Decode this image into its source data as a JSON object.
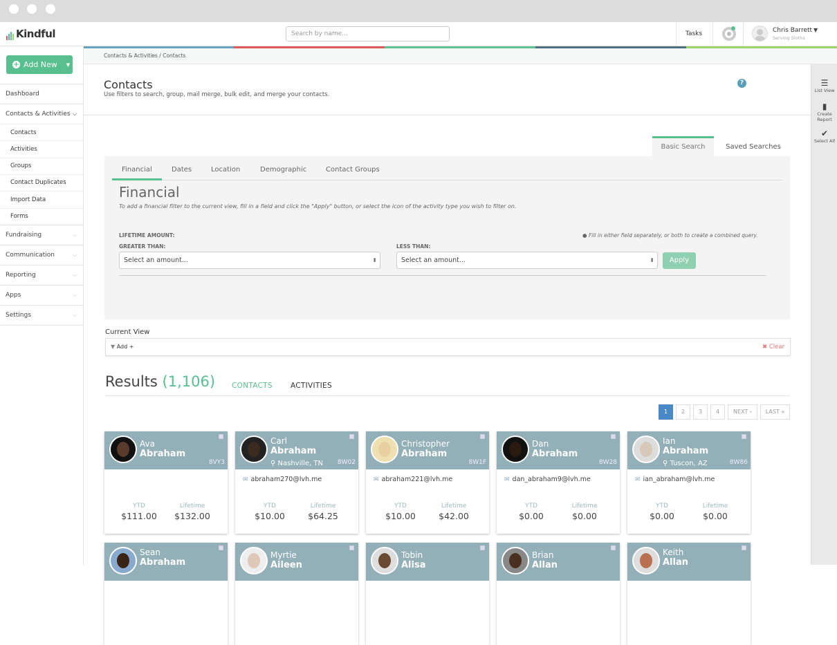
{
  "app": {
    "name": "Kindful",
    "search_placeholder": "Search by name...",
    "tasks": "Tasks",
    "user_name": "Chris Barrett",
    "user_org": "Serving Sloths"
  },
  "stripe_colors": [
    "#6aa5c0",
    "#e0595a",
    "#5ec38f",
    "#4b6f80",
    "#9cd36a"
  ],
  "accent": "#58bf8f",
  "sidebar": {
    "add_new": "Add New",
    "items": [
      {
        "label": "Dashboard"
      },
      {
        "label": "Contacts & Activities",
        "expanded": true,
        "children": [
          "Contacts",
          "Activities",
          "Groups",
          "Contact Duplicates",
          "Import Data",
          "Forms"
        ]
      },
      {
        "label": "Fundraising"
      },
      {
        "label": "Communication"
      },
      {
        "label": "Reporting"
      },
      {
        "label": "Apps"
      },
      {
        "label": "Settings"
      }
    ]
  },
  "breadcrumb": "Contacts & Activities  /  Contacts",
  "page": {
    "title": "Contacts",
    "subtitle": "Use filters to search, group, mail merge, bulk edit, and merge your contacts."
  },
  "right_toolbar": [
    "List View",
    "Create Report",
    "Select All"
  ],
  "search_tabs": {
    "basic": "Basic Search",
    "saved": "Saved Searches"
  },
  "filter": {
    "tabs": [
      "Financial",
      "Dates",
      "Location",
      "Demographic",
      "Contact Groups"
    ],
    "active_tab": "Financial",
    "title": "Financial",
    "description": "To add a financial filter to the current view, fill in a field and click the \"Apply\" button, or select the icon of the activity type you wish to filter on.",
    "lifetime_label": "LIFETIME AMOUNT:",
    "greater_label": "GREATER THAN:",
    "less_label": "LESS THAN:",
    "note": "Fill in either field separately, or both to create a combined query.",
    "greater_value": "Select an amount...",
    "less_value": "Select an amount...",
    "apply": "Apply"
  },
  "current_view": {
    "label": "Current View",
    "add": "Add +",
    "clear": "Clear"
  },
  "results": {
    "label": "Results",
    "count": "(1,106)",
    "tabs": [
      "CONTACTS",
      "ACTIVITIES"
    ]
  },
  "pagination": [
    "1",
    "2",
    "3",
    "4",
    "NEXT ›",
    "LAST »"
  ],
  "contacts": [
    {
      "first": "Ava",
      "last": "Abraham",
      "id": "8VY3",
      "location": "",
      "email": "",
      "ytd": "$111.00",
      "lifetime": "$132.00"
    },
    {
      "first": "Carl",
      "last": "Abraham",
      "id": "8W02",
      "location": "Nashville, TN",
      "email": "abraham270@lvh.me",
      "ytd": "$10.00",
      "lifetime": "$64.25"
    },
    {
      "first": "Christopher",
      "last": "Abraham",
      "id": "8W1F",
      "location": "",
      "email": "abraham221@lvh.me",
      "ytd": "$10.00",
      "lifetime": "$42.00"
    },
    {
      "first": "Dan",
      "last": "Abraham",
      "id": "8W28",
      "location": "",
      "email": "dan_abraham9@lvh.me",
      "ytd": "$0.00",
      "lifetime": "$0.00"
    },
    {
      "first": "Ian",
      "last": "Abraham",
      "id": "8W86",
      "location": "Tuscon, AZ",
      "email": "ian_abraham@lvh.me",
      "ytd": "$0.00",
      "lifetime": "$0.00"
    },
    {
      "first": "Sean",
      "last": "Abraham"
    },
    {
      "first": "Myrtie",
      "last": "Aileen"
    },
    {
      "first": "Tobin",
      "last": "Alisa"
    },
    {
      "first": "Brian",
      "last": "Allan"
    },
    {
      "first": "Keith",
      "last": "Allan"
    }
  ],
  "stat_labels": {
    "ytd": "YTD",
    "lifetime": "Lifetime"
  }
}
